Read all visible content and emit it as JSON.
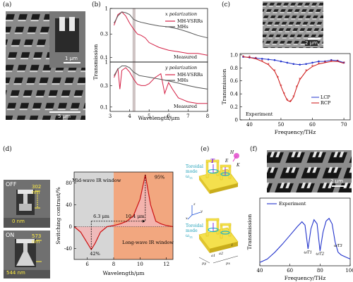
{
  "figure": {
    "panel_labels": {
      "a": "(a)",
      "b": "(b)",
      "c": "(c)",
      "d": "(d)",
      "e": "(e)",
      "f": "(f)"
    },
    "scale_bars": {
      "a_main": "5 μm",
      "a_inset": "1 μm",
      "c": "2 μm",
      "f": "2 μm"
    },
    "d_texts": {
      "off": "OFF",
      "on": "ON",
      "off_dim_top": "302 nm",
      "off_dim_bottom": "0 nm",
      "on_dim_top": "573 nm",
      "on_dim_bottom": "544 nm"
    },
    "e_texts": {
      "toroidal_top": "Toroidal mode ω",
      "toroidal_top_sub": "T1",
      "toroidal_bottom": "Toroidal mode ω",
      "toroidal_bottom_sub": "T1",
      "T": "T",
      "H": "H",
      "E": "E",
      "K": "K",
      "x": "x",
      "y": "y",
      "z": "z",
      "a1": "a1",
      "a2": "a2",
      "l": "l",
      "py": "py",
      "px": "px"
    },
    "colors": {
      "red": "#d42045",
      "grey": "#555555",
      "blue": "#2233cc",
      "darkred": "#cc1111",
      "orange_fill": "#f2a77f",
      "pink_fill": "#f3b5b5",
      "gray_fill": "#d6d6d6"
    }
  },
  "chart_data": [
    {
      "id": "b_top",
      "type": "line",
      "title": "x polarization",
      "ylabel": "Transmission",
      "xlabel": "",
      "xlim": [
        3,
        8
      ],
      "ylim": [
        0.08,
        1.0
      ],
      "yscale": "log",
      "yticks": [
        "1",
        "0.3",
        "0.1"
      ],
      "annotation": "Measured",
      "series": [
        {
          "name": "MH-VSRRs",
          "color": "#d42045",
          "x": [
            3.2,
            3.4,
            3.6,
            3.8,
            4.0,
            4.2,
            4.4,
            4.6,
            4.8,
            5.0,
            5.5,
            6.0,
            6.5,
            7.0,
            7.5,
            8.0
          ],
          "y": [
            0.45,
            0.75,
            0.85,
            0.7,
            0.5,
            0.38,
            0.3,
            0.28,
            0.25,
            0.2,
            0.16,
            0.14,
            0.13,
            0.12,
            0.12,
            0.11
          ]
        },
        {
          "name": "MHs",
          "color": "#555555",
          "x": [
            3.2,
            3.4,
            3.6,
            3.8,
            4.0,
            4.2,
            4.4,
            4.6,
            4.8,
            5.0,
            5.5,
            6.0,
            6.5,
            7.0,
            7.5,
            8.0
          ],
          "y": [
            0.5,
            0.7,
            0.85,
            0.82,
            0.75,
            0.6,
            0.55,
            0.52,
            0.5,
            0.48,
            0.44,
            0.42,
            0.38,
            0.33,
            0.28,
            0.25
          ]
        }
      ]
    },
    {
      "id": "b_bottom",
      "type": "line",
      "title": "y polarization",
      "ylabel": "Transmission",
      "xlabel": "Wavelength/μm",
      "xlim": [
        3,
        8
      ],
      "ylim": [
        0.08,
        1.0
      ],
      "yscale": "log",
      "xticks": [
        "3",
        "4",
        "5",
        "6",
        "7",
        "8"
      ],
      "yticks": [
        "1",
        "0.3",
        "0.1"
      ],
      "annotation": "Measured",
      "series": [
        {
          "name": "MH-VSRRs",
          "color": "#d42045",
          "x": [
            3.2,
            3.4,
            3.5,
            3.6,
            3.8,
            4.0,
            4.2,
            4.4,
            4.6,
            4.8,
            5.0,
            5.3,
            5.6,
            5.8,
            6.0,
            6.2,
            6.5,
            7.0,
            7.5,
            8.0
          ],
          "y": [
            0.45,
            0.72,
            0.25,
            0.65,
            0.75,
            0.6,
            0.42,
            0.32,
            0.3,
            0.3,
            0.33,
            0.45,
            0.55,
            0.2,
            0.35,
            0.25,
            0.16,
            0.13,
            0.12,
            0.12
          ]
        },
        {
          "name": "MHs",
          "color": "#555555",
          "x": [
            3.2,
            3.4,
            3.6,
            3.8,
            4.0,
            4.2,
            4.5,
            5.0,
            5.5,
            6.0,
            6.5,
            7.0,
            7.5,
            8.0
          ],
          "y": [
            0.5,
            0.7,
            0.82,
            0.82,
            0.75,
            0.6,
            0.5,
            0.46,
            0.42,
            0.38,
            0.34,
            0.3,
            0.27,
            0.25
          ]
        }
      ]
    },
    {
      "id": "c",
      "type": "line",
      "ylabel": "Transmission",
      "xlabel": "Frequency/THz",
      "xlim": [
        40,
        70
      ],
      "ylim": [
        0,
        1.0
      ],
      "xticks": [
        "40",
        "50",
        "60",
        "70"
      ],
      "yticks": [
        "0",
        "0.2",
        "0.4",
        "0.6",
        "0.8",
        "1.0"
      ],
      "annotation": "Experiment",
      "legend": "bottom-left",
      "series": [
        {
          "name": "LCP",
          "color": "#2233cc",
          "x": [
            38,
            40,
            42,
            44,
            46,
            48,
            50,
            52,
            54,
            56,
            58,
            60,
            62,
            64,
            66,
            68,
            70
          ],
          "y": [
            0.97,
            0.96,
            0.95,
            0.94,
            0.93,
            0.92,
            0.9,
            0.88,
            0.86,
            0.85,
            0.86,
            0.88,
            0.9,
            0.9,
            0.92,
            0.91,
            0.88
          ]
        },
        {
          "name": "RCP",
          "color": "#cc1111",
          "x": [
            38,
            40,
            42,
            44,
            46,
            48,
            49,
            50,
            51,
            52,
            53,
            54,
            55,
            56,
            58,
            60,
            62,
            64,
            66,
            68,
            70
          ],
          "y": [
            0.97,
            0.96,
            0.94,
            0.9,
            0.85,
            0.75,
            0.65,
            0.52,
            0.4,
            0.3,
            0.28,
            0.35,
            0.5,
            0.62,
            0.75,
            0.82,
            0.86,
            0.88,
            0.9,
            0.9,
            0.87
          ]
        }
      ]
    },
    {
      "id": "d",
      "type": "line",
      "ylabel": "Switching contrast/%",
      "xlabel": "Wavelength/μm",
      "xlim": [
        5,
        12.5
      ],
      "ylim": [
        -60,
        100
      ],
      "xticks": [
        "6",
        "8",
        "10",
        "12"
      ],
      "yticks": [
        "-40",
        "0",
        "40",
        "80"
      ],
      "annotations": [
        "Mid-wave IR window",
        "Long-wave IR window",
        "6.3 μm",
        "10.4 μm",
        "95%",
        "42%"
      ],
      "series": [
        {
          "name": "",
          "color": "#cc1111",
          "x": [
            5,
            5.5,
            6.0,
            6.3,
            6.6,
            7.0,
            7.5,
            8.0,
            8.5,
            9.0,
            9.5,
            10.0,
            10.4,
            10.8,
            11.2,
            11.6,
            12.0,
            12.5
          ],
          "y": [
            0,
            -10,
            -30,
            -42,
            -30,
            -10,
            0,
            2,
            5,
            10,
            20,
            50,
            95,
            40,
            10,
            5,
            2,
            0
          ]
        }
      ]
    },
    {
      "id": "f",
      "type": "line",
      "ylabel": "Transmission",
      "xlabel": "Frequency/THz",
      "xlim": [
        40,
        100
      ],
      "ylim": [
        0,
        1.0
      ],
      "xticks": [
        "40",
        "60",
        "80",
        "100"
      ],
      "annotation": "Experiment",
      "labels": [
        "ωT1",
        "ωT2",
        "ωT3"
      ],
      "series": [
        {
          "name": "Experiment",
          "color": "#2233cc",
          "x": [
            40,
            45,
            50,
            55,
            60,
            65,
            68,
            70,
            72,
            74,
            76,
            78,
            80,
            82,
            84,
            86,
            88,
            90,
            92,
            94,
            96,
            98,
            100
          ],
          "y": [
            0.05,
            0.1,
            0.2,
            0.32,
            0.45,
            0.58,
            0.65,
            0.6,
            0.25,
            0.55,
            0.68,
            0.62,
            0.22,
            0.5,
            0.66,
            0.7,
            0.62,
            0.35,
            0.2,
            0.16,
            0.14,
            0.12,
            0.1
          ]
        }
      ]
    }
  ]
}
